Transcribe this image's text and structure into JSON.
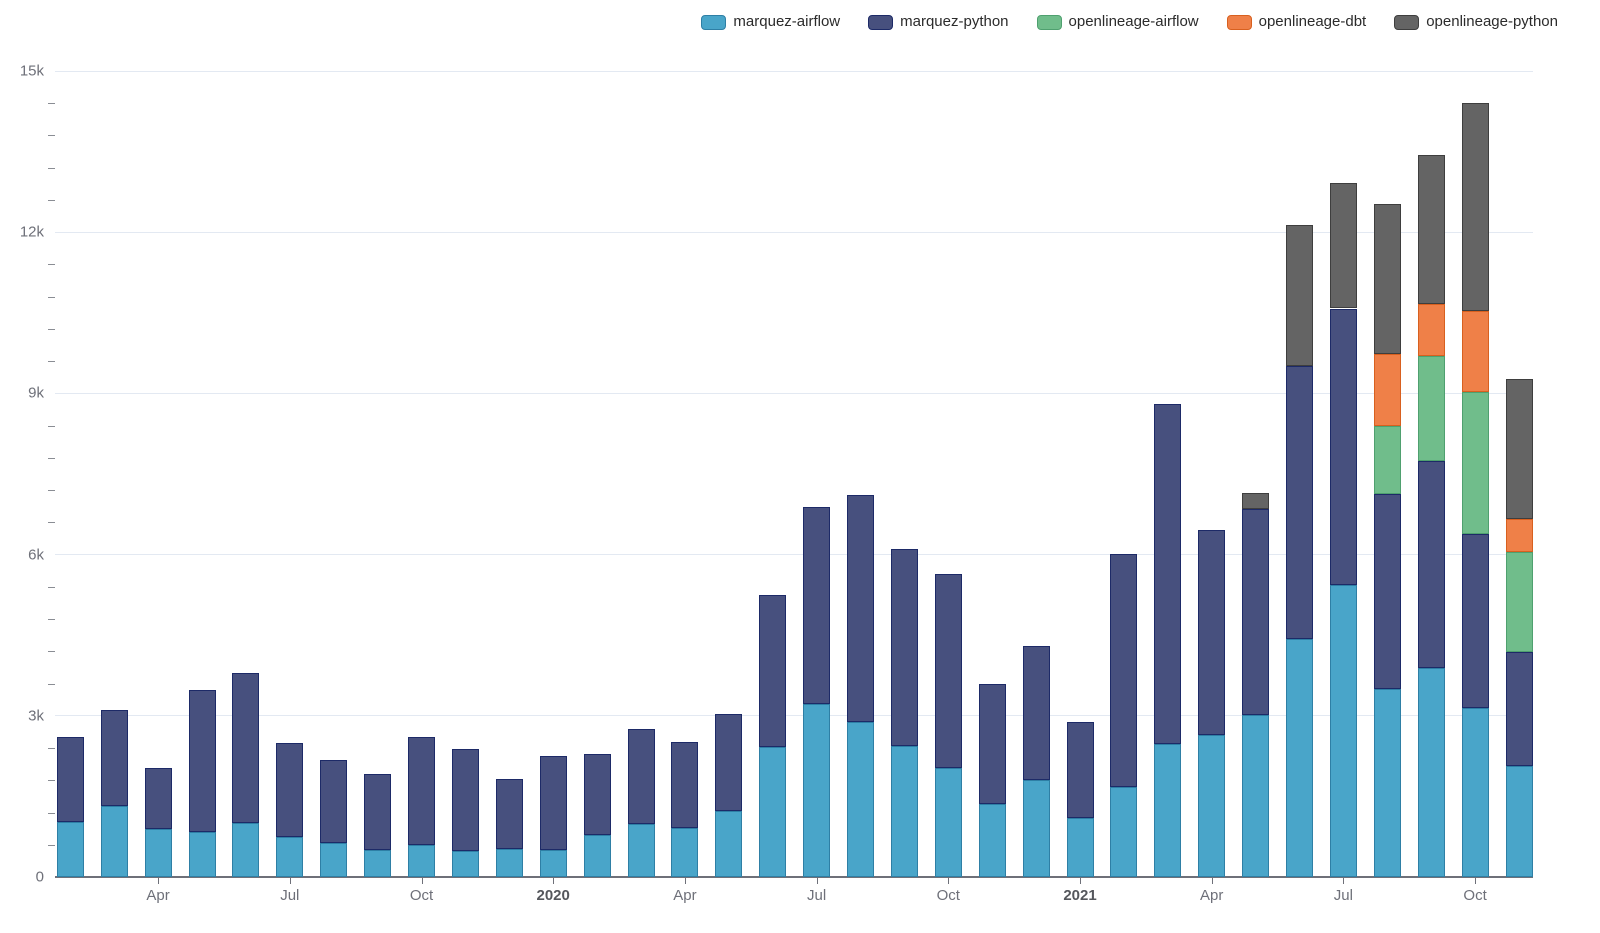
{
  "chart": {
    "title": "",
    "legend_items": [
      "marquez-airflow",
      "marquez-python",
      "openlineage-airflow",
      "openlineage-dbt",
      "openlineage-python"
    ]
  },
  "chart_data": {
    "type": "bar",
    "stacked": true,
    "grid": true,
    "legend_position": "top-right",
    "background": "#ffffff",
    "axis_color": "#6E7079",
    "gridline_color": "#e3e9f2",
    "categories": [
      "2019-02",
      "2019-03",
      "2019-04",
      "2019-05",
      "2019-06",
      "2019-07",
      "2019-08",
      "2019-09",
      "2019-10",
      "2019-11",
      "2019-12",
      "2020-01",
      "2020-02",
      "2020-03",
      "2020-04",
      "2020-05",
      "2020-06",
      "2020-07",
      "2020-08",
      "2020-09",
      "2020-10",
      "2020-11",
      "2020-12",
      "2021-01",
      "2021-02",
      "2021-03",
      "2021-04",
      "2021-05",
      "2021-06",
      "2021-07",
      "2021-08",
      "2021-09",
      "2021-10",
      "2021-11"
    ],
    "series": [
      {
        "name": "marquez-airflow",
        "color": "#49A5C9",
        "border_color": "#2E7FA5",
        "values": [
          1020,
          1320,
          890,
          830,
          1000,
          740,
          630,
          510,
          590,
          480,
          520,
          510,
          790,
          980,
          910,
          1230,
          2420,
          3220,
          2890,
          2430,
          2030,
          1360,
          1810,
          1100,
          1670,
          2470,
          2650,
          3020,
          4430,
          5430,
          3490,
          3890,
          3150,
          2060
        ]
      },
      {
        "name": "marquez-python",
        "color": "#47507E",
        "border_color": "#1D2A67",
        "values": [
          1590,
          1790,
          1130,
          2650,
          2790,
          1750,
          1550,
          1400,
          2010,
          1910,
          1310,
          1750,
          1500,
          1780,
          1610,
          1810,
          2830,
          3670,
          4210,
          3670,
          3610,
          2240,
          2480,
          1780,
          4340,
          6340,
          3800,
          3830,
          5080,
          5150,
          3640,
          3860,
          3230,
          2130
        ]
      },
      {
        "name": "openlineage-airflow",
        "color": "#70BD8B",
        "border_color": "#4FA06F",
        "values": [
          0,
          0,
          0,
          0,
          0,
          0,
          0,
          0,
          0,
          0,
          0,
          0,
          0,
          0,
          0,
          0,
          0,
          0,
          0,
          0,
          0,
          0,
          0,
          0,
          0,
          0,
          0,
          0,
          0,
          0,
          1260,
          1940,
          2650,
          1850
        ]
      },
      {
        "name": "openlineage-dbt",
        "color": "#EF8048",
        "border_color": "#D8601F",
        "values": [
          0,
          0,
          0,
          0,
          0,
          0,
          0,
          0,
          0,
          0,
          0,
          0,
          0,
          0,
          0,
          0,
          0,
          0,
          0,
          0,
          0,
          0,
          0,
          0,
          0,
          0,
          0,
          0,
          0,
          0,
          1350,
          980,
          1510,
          630
        ]
      },
      {
        "name": "openlineage-python",
        "color": "#646464",
        "border_color": "#3E3E3E",
        "values": [
          0,
          0,
          0,
          0,
          0,
          0,
          0,
          0,
          0,
          0,
          0,
          0,
          0,
          0,
          0,
          0,
          0,
          0,
          0,
          0,
          0,
          0,
          0,
          0,
          0,
          0,
          0,
          300,
          2620,
          2340,
          2790,
          2760,
          3870,
          2600
        ]
      }
    ],
    "y_axis": {
      "tick_labels": [
        "0",
        "3k",
        "6k",
        "9k",
        "12k",
        "15k"
      ],
      "min": 0,
      "max": 15000,
      "major_interval": 3000,
      "minor_interval": 600
    },
    "x_tick_labels": [
      {
        "index": 2,
        "label": "Apr",
        "bold": false
      },
      {
        "index": 5,
        "label": "Jul",
        "bold": false
      },
      {
        "index": 8,
        "label": "Oct",
        "bold": false
      },
      {
        "index": 11,
        "label": "2020",
        "bold": true
      },
      {
        "index": 14,
        "label": "Apr",
        "bold": false
      },
      {
        "index": 17,
        "label": "Jul",
        "bold": false
      },
      {
        "index": 20,
        "label": "Oct",
        "bold": false
      },
      {
        "index": 23,
        "label": "2021",
        "bold": true
      },
      {
        "index": 26,
        "label": "Apr",
        "bold": false
      },
      {
        "index": 29,
        "label": "Jul",
        "bold": false
      },
      {
        "index": 32,
        "label": "Oct",
        "bold": false
      }
    ]
  }
}
